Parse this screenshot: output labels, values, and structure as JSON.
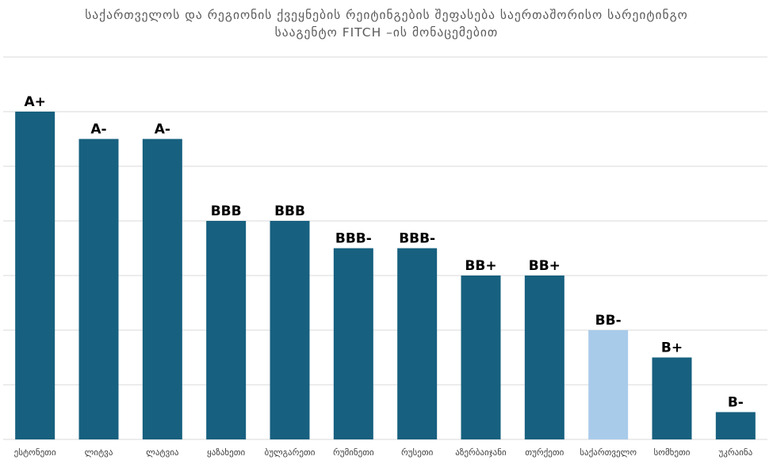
{
  "title": {
    "line1": "საქართველოს და რეგიონის ქვეყნების რეიტინგების შეფასება საერთაშორისო სარეიტინგო",
    "line2": "სააგენტო FITCH –ის მონაცემებით"
  },
  "colors": {
    "bar": "#17607f",
    "highlight": "#a9cbea",
    "grid": "#d9d9d9",
    "label": "#000000",
    "category": "#404040"
  },
  "chart_data": {
    "type": "bar",
    "title": "საქართველოს და რეგიონის ქვეყნების რეიტინგების შეფასება საერთაშორისო სარეიტინგო სააგენტო FITCH –ის მონაცემებით",
    "categories": [
      "ესტონეთი",
      "ლიტვა",
      "ლატვია",
      "ყაზახეთი",
      "ბულგარეთი",
      "რუმინეთი",
      "რუსეთი",
      "აზერბაიჯანი",
      "თურქეთი",
      "საქართველო",
      "სომხეთი",
      "უკრაინა"
    ],
    "labels": [
      "A+",
      "A-",
      "A-",
      "BBB",
      "BBB",
      "BBB-",
      "BBB-",
      "BB+",
      "BB+",
      "BB-",
      "B+",
      "B-"
    ],
    "values": [
      12,
      11,
      11,
      8,
      8,
      7,
      7,
      6,
      6,
      4,
      3,
      1
    ],
    "highlight": "საქართველო",
    "ylim": [
      0,
      12
    ],
    "grid": true,
    "legend": "none"
  }
}
